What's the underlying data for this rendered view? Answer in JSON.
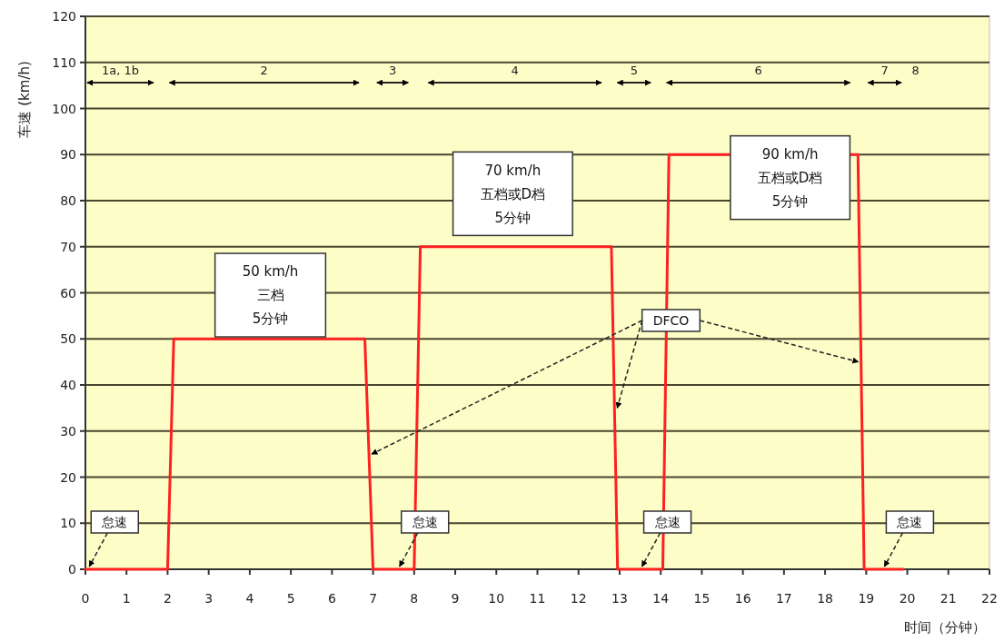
{
  "chart_data": {
    "type": "line",
    "xlabel": "时间（分钟）",
    "ylabel": "车速 (km/h)",
    "xlim": [
      0,
      22
    ],
    "xticks": [
      0,
      1,
      2,
      3,
      4,
      5,
      6,
      7,
      8,
      9,
      10,
      11,
      12,
      13,
      14,
      15,
      16,
      17,
      18,
      19,
      20,
      21,
      22
    ],
    "ylim": [
      0,
      120
    ],
    "yticks": [
      0,
      10,
      20,
      30,
      40,
      50,
      60,
      70,
      80,
      90,
      100,
      110,
      120
    ],
    "grid": "y",
    "series": [
      {
        "color": "#ff2020",
        "x": [
          0,
          2,
          2.15,
          6.8,
          7.0,
          8.0,
          8.15,
          12.8,
          12.95,
          14.05,
          14.2,
          18.8,
          18.95,
          19.9
        ],
        "values": [
          0,
          0,
          50,
          50,
          0,
          0,
          70,
          70,
          0,
          0,
          90,
          90,
          0,
          0
        ]
      }
    ],
    "annotations": [
      "1a, 1b",
      "2",
      "3",
      "4",
      "5",
      "6",
      "7",
      "8",
      "50 km/h\n三档\n5分钟",
      "70 km/h\n五档或D档\n5分钟",
      "90 km/h\n五档或D档\n5分钟",
      {
        "text": "DFCO",
        "x": 14.25,
        "y": 54
      },
      {
        "text": "怠速",
        "x": 0.05,
        "y": 0
      },
      {
        "text": "怠速",
        "x": 7.6,
        "y": 0
      },
      {
        "text": "怠速",
        "x": 13.5,
        "y": 0
      },
      {
        "text": "怠速",
        "x": 19.4,
        "y": 0
      }
    ]
  }
}
